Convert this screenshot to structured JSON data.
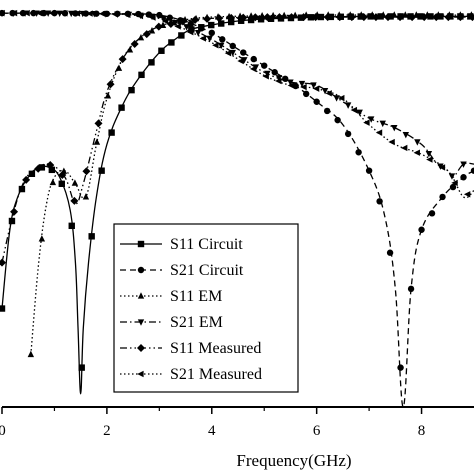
{
  "chart_data": {
    "type": "line",
    "xlabel": "Frequency(GHz)",
    "ylabel": "",
    "xlim": [
      0,
      9
    ],
    "ylim": [
      -60,
      2
    ],
    "x_ticks": [
      0,
      2,
      4,
      6,
      8
    ],
    "x_tick_labels": [
      "0",
      "2",
      "4",
      "6",
      "8"
    ],
    "grid": false,
    "legend_position": "lower-center",
    "series": [
      {
        "name": "S11 Circuit",
        "line": "solid",
        "marker": "square",
        "color": "#000000",
        "points": [
          [
            0.0,
            -45
          ],
          [
            0.15,
            -33
          ],
          [
            0.3,
            -28
          ],
          [
            0.5,
            -25
          ],
          [
            0.7,
            -23.5
          ],
          [
            0.9,
            -23.5
          ],
          [
            1.1,
            -25
          ],
          [
            1.3,
            -30
          ],
          [
            1.4,
            -38
          ],
          [
            1.45,
            -48
          ],
          [
            1.5,
            -58
          ],
          [
            1.55,
            -48
          ],
          [
            1.65,
            -38
          ],
          [
            1.8,
            -28
          ],
          [
            2.0,
            -20
          ],
          [
            2.3,
            -14
          ],
          [
            2.6,
            -10
          ],
          [
            3.0,
            -6
          ],
          [
            3.3,
            -4
          ],
          [
            3.6,
            -2.5
          ],
          [
            4.0,
            -1.8
          ],
          [
            4.5,
            -1.2
          ],
          [
            5.0,
            -0.9
          ],
          [
            6.0,
            -0.6
          ],
          [
            7.0,
            -0.5
          ],
          [
            8.0,
            -0.5
          ],
          [
            9.0,
            -0.5
          ]
        ]
      },
      {
        "name": "S21 Circuit",
        "line": "dashed",
        "marker": "circle",
        "color": "#000000",
        "points": [
          [
            0.0,
            0
          ],
          [
            1.0,
            0
          ],
          [
            2.0,
            -0.1
          ],
          [
            2.5,
            -0.1
          ],
          [
            3.0,
            -0.3
          ],
          [
            3.5,
            -1.3
          ],
          [
            4.0,
            -3
          ],
          [
            4.5,
            -5.5
          ],
          [
            5.0,
            -8
          ],
          [
            5.5,
            -10.5
          ],
          [
            6.0,
            -13.5
          ],
          [
            6.5,
            -17
          ],
          [
            7.0,
            -24
          ],
          [
            7.3,
            -31
          ],
          [
            7.5,
            -42
          ],
          [
            7.65,
            -60
          ],
          [
            7.8,
            -42
          ],
          [
            8.0,
            -33
          ],
          [
            8.4,
            -28
          ],
          [
            8.8,
            -25
          ],
          [
            9.0,
            -24
          ]
        ]
      },
      {
        "name": "S11 EM",
        "line": "dotted",
        "marker": "triangle-up",
        "color": "#000000",
        "points": [
          [
            0.55,
            -52
          ],
          [
            0.7,
            -38
          ],
          [
            0.85,
            -29
          ],
          [
            1.0,
            -25
          ],
          [
            1.2,
            -24
          ],
          [
            1.4,
            -26
          ],
          [
            1.6,
            -28
          ],
          [
            1.8,
            -20
          ],
          [
            2.0,
            -13
          ],
          [
            2.3,
            -7
          ],
          [
            2.6,
            -4
          ],
          [
            3.0,
            -2
          ],
          [
            3.5,
            -1
          ],
          [
            4.0,
            -0.6
          ],
          [
            5.0,
            -0.4
          ],
          [
            6.0,
            -0.3
          ],
          [
            7.0,
            -0.3
          ],
          [
            8.0,
            -0.3
          ],
          [
            9.0,
            -0.3
          ]
        ]
      },
      {
        "name": "S21 EM",
        "line": "dash-dot",
        "marker": "triangle-down",
        "color": "#000000",
        "points": [
          [
            0.0,
            0
          ],
          [
            1.0,
            0
          ],
          [
            2.0,
            -0.1
          ],
          [
            2.5,
            -0.2
          ],
          [
            3.0,
            -0.6
          ],
          [
            3.5,
            -2
          ],
          [
            4.0,
            -4
          ],
          [
            4.5,
            -6.5
          ],
          [
            5.0,
            -9
          ],
          [
            5.5,
            -10.5
          ],
          [
            6.0,
            -11
          ],
          [
            6.5,
            -13.5
          ],
          [
            7.0,
            -16
          ],
          [
            7.5,
            -17.5
          ],
          [
            8.0,
            -20
          ],
          [
            8.3,
            -23
          ],
          [
            8.5,
            -24
          ],
          [
            8.6,
            -25
          ],
          [
            8.8,
            -23
          ],
          [
            9.0,
            -23
          ]
        ]
      },
      {
        "name": "S11 Measured",
        "line": "dash-dot-dot",
        "marker": "diamond",
        "color": "#000000",
        "points": [
          [
            0.0,
            -38
          ],
          [
            0.2,
            -31
          ],
          [
            0.4,
            -26
          ],
          [
            0.6,
            -24
          ],
          [
            0.9,
            -23
          ],
          [
            1.2,
            -25
          ],
          [
            1.4,
            -29
          ],
          [
            1.55,
            -26
          ],
          [
            1.8,
            -18
          ],
          [
            2.0,
            -12
          ],
          [
            2.3,
            -7
          ],
          [
            2.6,
            -4
          ],
          [
            3.0,
            -2
          ],
          [
            3.5,
            -1.2
          ],
          [
            4.0,
            -0.8
          ],
          [
            5.0,
            -0.6
          ],
          [
            6.0,
            -0.6
          ],
          [
            7.0,
            -0.6
          ],
          [
            8.0,
            -0.6
          ],
          [
            9.0,
            -0.6
          ]
        ]
      },
      {
        "name": "S21 Measured",
        "line": "dotted",
        "marker": "triangle-left",
        "color": "#000000",
        "points": [
          [
            0.0,
            0
          ],
          [
            1.0,
            0
          ],
          [
            2.0,
            -0.1
          ],
          [
            2.5,
            -0.3
          ],
          [
            3.0,
            -0.8
          ],
          [
            3.5,
            -2.5
          ],
          [
            4.0,
            -4.5
          ],
          [
            4.5,
            -7
          ],
          [
            5.0,
            -9.5
          ],
          [
            5.5,
            -11
          ],
          [
            6.0,
            -11.5
          ],
          [
            6.5,
            -13
          ],
          [
            7.0,
            -17
          ],
          [
            7.5,
            -20
          ],
          [
            8.0,
            -21.5
          ],
          [
            8.5,
            -24
          ],
          [
            8.8,
            -28
          ],
          [
            9.0,
            -27
          ]
        ]
      }
    ]
  }
}
